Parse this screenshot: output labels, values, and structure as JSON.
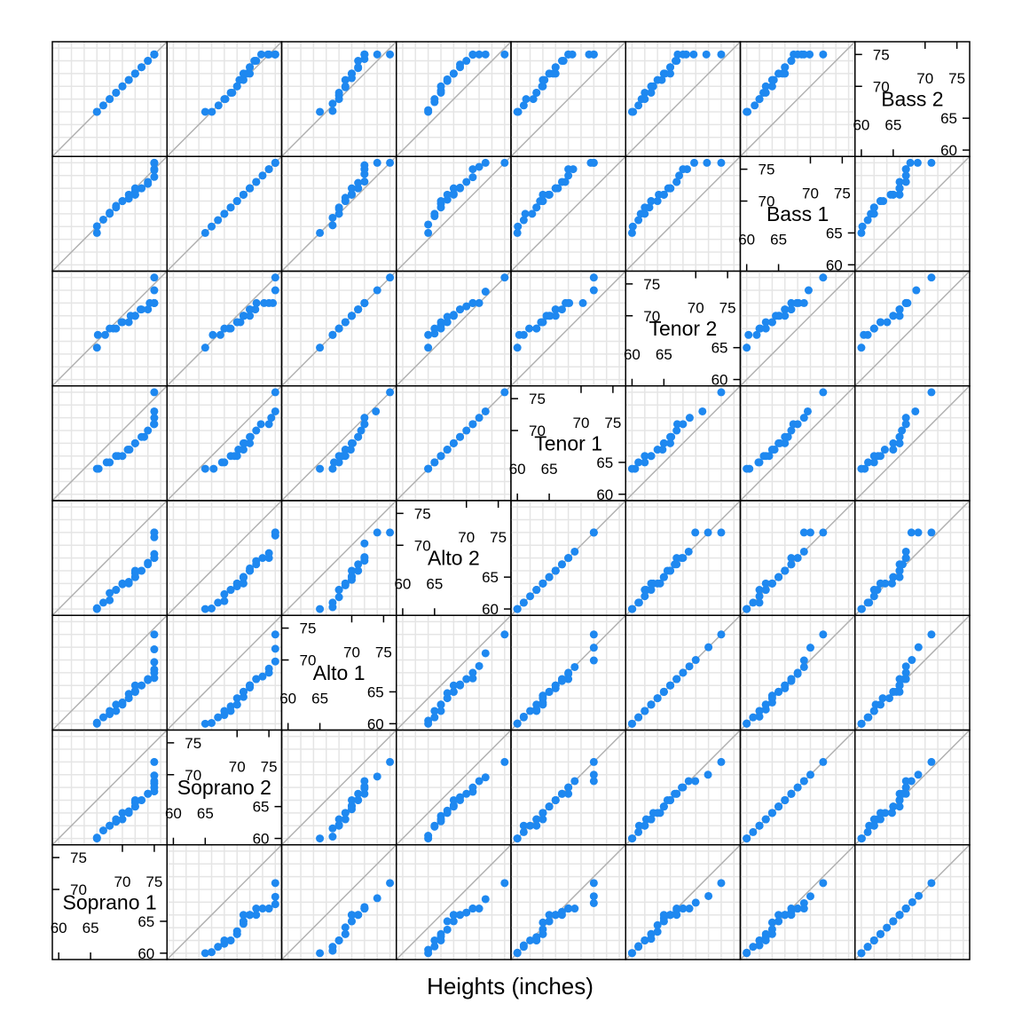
{
  "chart_data": {
    "type": "scatter",
    "subtype": "qq-splom",
    "title": "",
    "xlabel": "Heights (inches)",
    "ylabel": "",
    "lim": [
      59,
      77
    ],
    "grid": true,
    "reference_line": "y = x",
    "colors": {
      "points": "#1e88f0",
      "grid": "#e5e5e5",
      "refline": "#b0b0b0",
      "frame": "#000000"
    },
    "ticks": {
      "inner": [
        60,
        65
      ],
      "outer": [
        70,
        75
      ],
      "outer_side": [
        65,
        60
      ],
      "inner_side": [
        70,
        75
      ]
    },
    "variables": [
      {
        "name": "Soprano 1",
        "values": [
          60,
          60,
          61,
          61,
          62,
          62,
          62,
          62,
          63,
          63,
          63,
          64,
          65,
          65,
          65,
          66,
          66,
          66,
          66,
          66,
          66,
          66,
          67,
          67,
          67,
          67,
          67,
          68,
          69,
          71
        ]
      },
      {
        "name": "Soprano 2",
        "values": [
          60,
          60,
          61,
          62,
          62,
          62,
          63,
          63,
          63,
          64,
          64,
          64,
          65,
          65,
          65,
          66,
          66,
          66,
          66,
          67,
          67,
          67,
          68,
          68,
          69,
          69,
          70,
          72
        ]
      },
      {
        "name": "Alto 1",
        "values": [
          60,
          60,
          61,
          61,
          62,
          62,
          62,
          63,
          63,
          63,
          64,
          64,
          65,
          65,
          65,
          65,
          66,
          66,
          66,
          66,
          67,
          67,
          67,
          68,
          68,
          69,
          70,
          72,
          74
        ]
      },
      {
        "name": "Alto 2",
        "values": [
          60,
          60,
          61,
          61,
          62,
          63,
          63,
          63,
          64,
          64,
          64,
          64,
          65,
          65,
          65,
          66,
          66,
          66,
          66,
          67,
          67,
          68,
          68,
          68,
          69,
          72,
          72,
          72
        ]
      },
      {
        "name": "Tenor 1",
        "values": [
          64,
          64,
          65,
          65,
          66,
          66,
          66,
          67,
          67,
          68,
          68,
          68,
          69,
          69,
          70,
          71,
          71,
          72,
          73,
          76
        ]
      },
      {
        "name": "Tenor 2",
        "values": [
          65,
          67,
          67,
          68,
          68,
          68,
          69,
          69,
          69,
          70,
          70,
          70,
          70,
          71,
          71,
          71,
          72,
          72,
          72,
          72,
          74,
          76
        ]
      },
      {
        "name": "Bass 1",
        "values": [
          65,
          66,
          67,
          68,
          68,
          69,
          69,
          70,
          70,
          70,
          71,
          71,
          71,
          71,
          72,
          72,
          72,
          72,
          73,
          73,
          74,
          75,
          75,
          76,
          76,
          76
        ]
      },
      {
        "name": "Bass 2",
        "values": [
          66,
          66,
          67,
          68,
          68,
          69,
          69,
          70,
          70,
          71,
          71,
          72,
          72,
          72,
          72,
          73,
          73,
          74,
          74,
          75,
          75,
          75,
          75,
          75,
          75
        ]
      }
    ]
  }
}
